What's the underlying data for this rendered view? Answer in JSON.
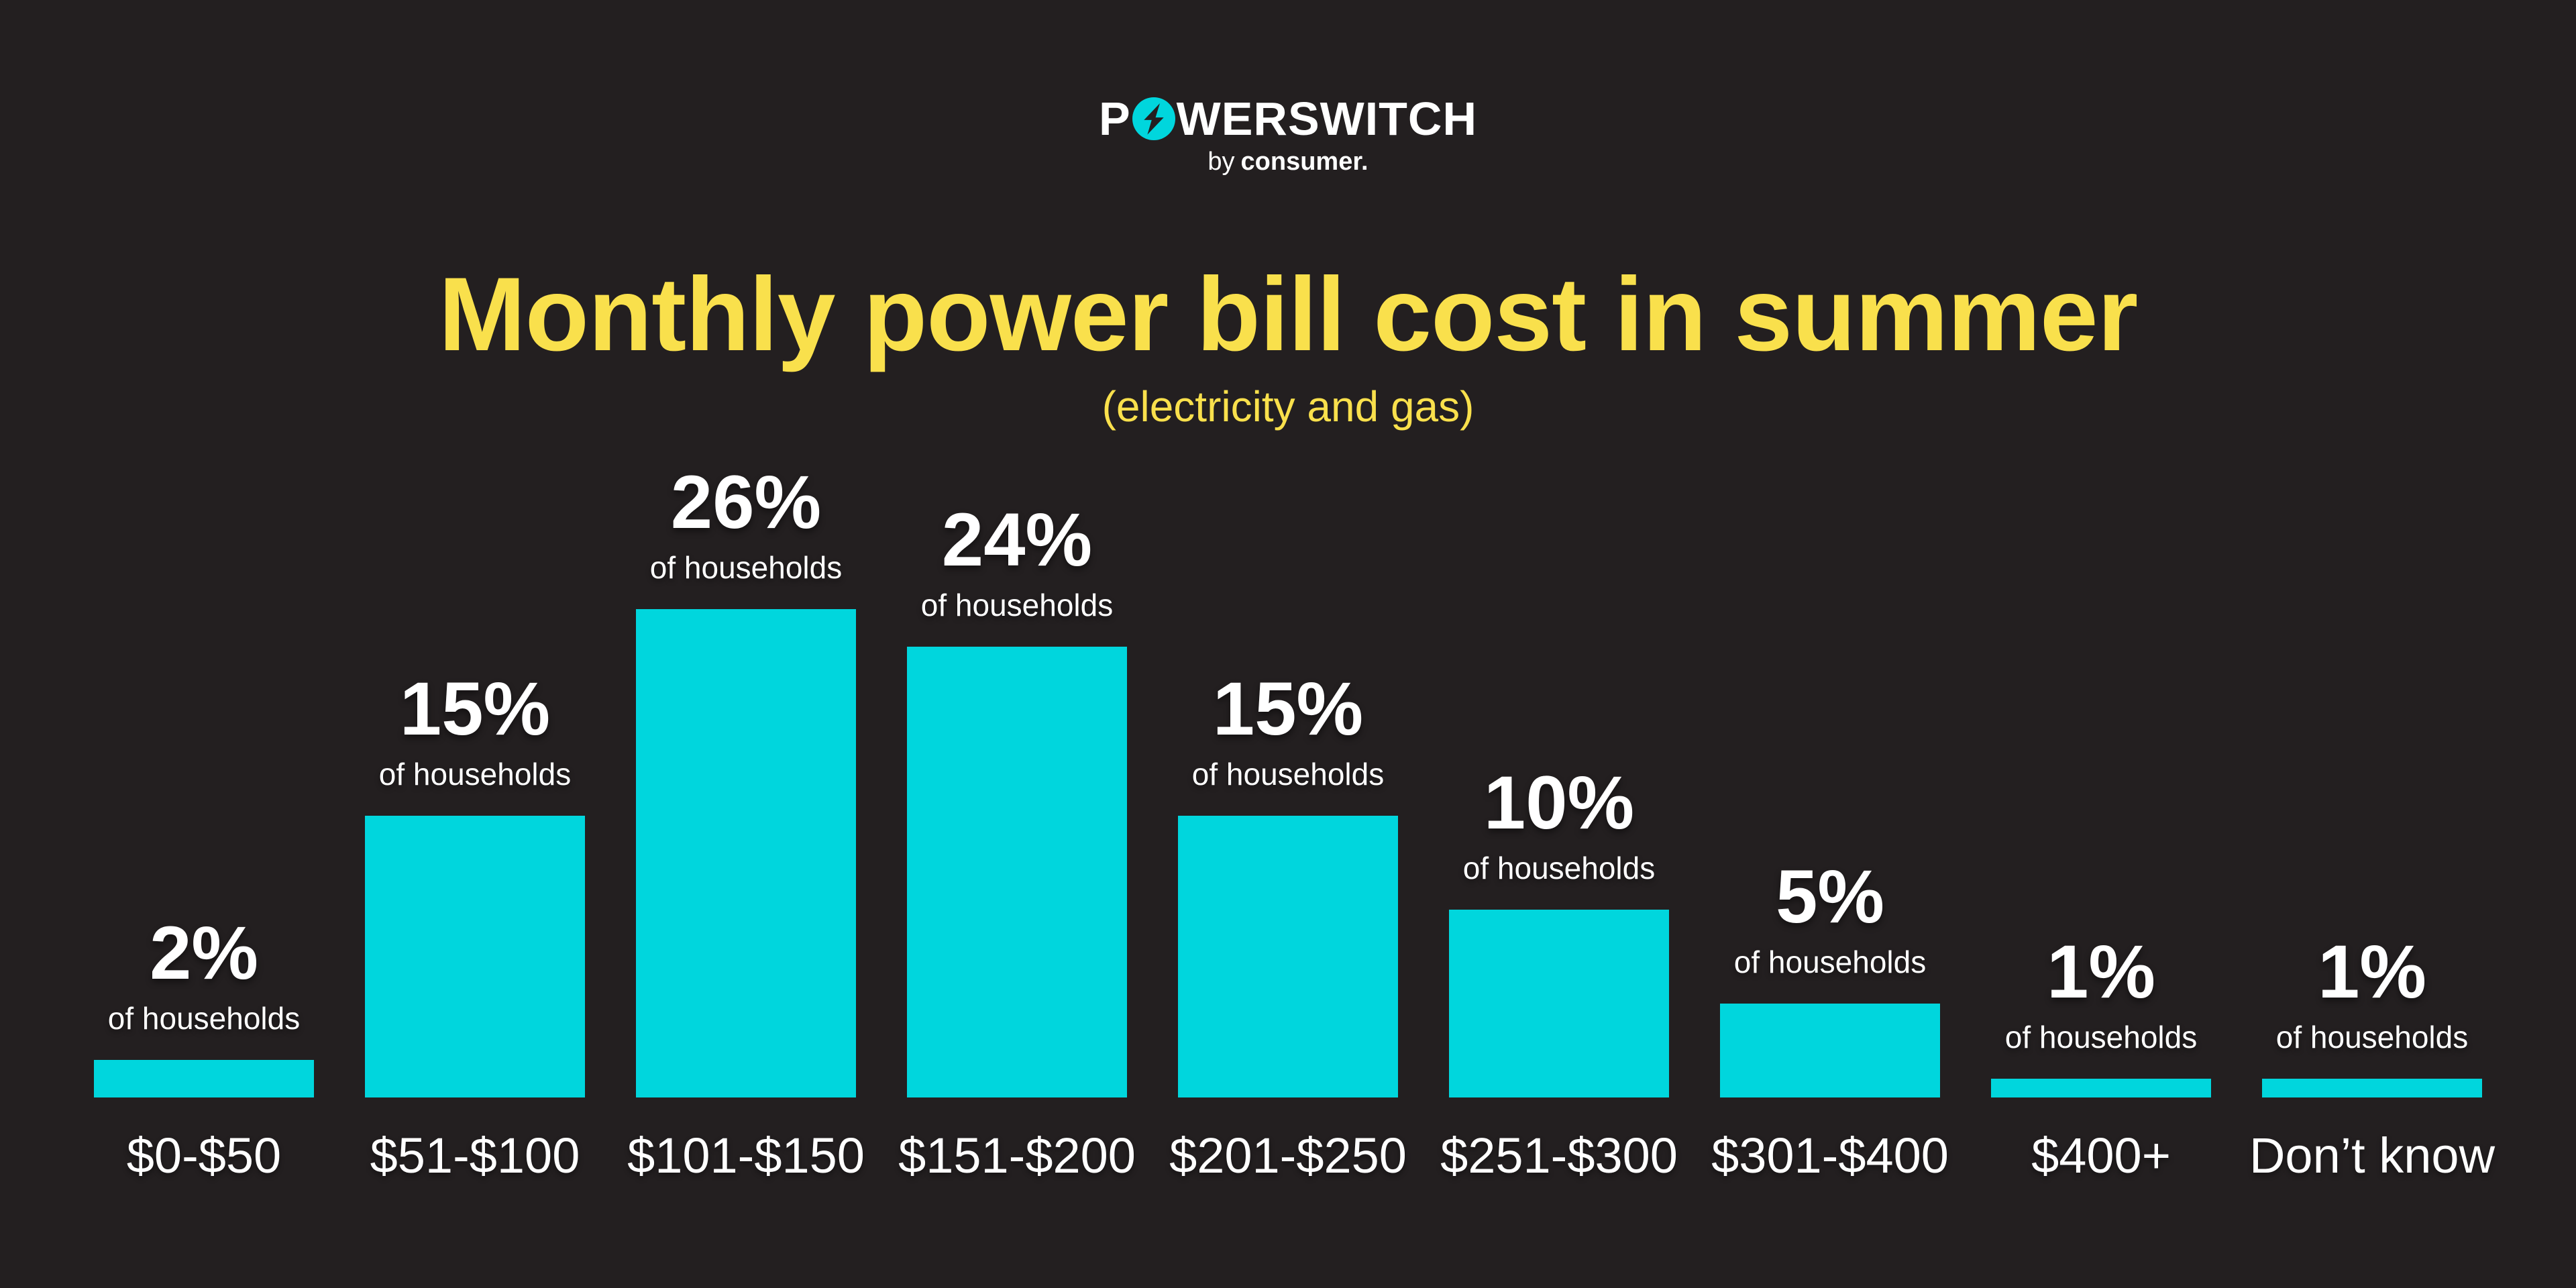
{
  "logo": {
    "brand": "POWERSWITCH",
    "prefix": "P",
    "suffix": "WERSWITCH",
    "byline_by": "by",
    "byline_brand": "consumer."
  },
  "title": "Monthly power bill cost in summer",
  "subtitle": "(electricity and gas)",
  "colors": {
    "background": "#231F20",
    "bar": "#00D6DD",
    "accent_yellow": "#F9E04C",
    "text_white": "#FFFFFF",
    "logo_icon_cyan": "#00D6DD"
  },
  "chart_data": {
    "type": "bar",
    "title": "Monthly power bill cost in summer",
    "subtitle": "(electricity and gas)",
    "categories": [
      "$0-$50",
      "$51-$100",
      "$101-$150",
      "$151-$200",
      "$201-$250",
      "$251-$300",
      "$301-$400",
      "$400+",
      "Don’t know"
    ],
    "values": [
      2,
      15,
      26,
      24,
      15,
      10,
      5,
      1,
      1
    ],
    "value_labels": [
      "2%",
      "15%",
      "26%",
      "24%",
      "15%",
      "10%",
      "5%",
      "1%",
      "1%"
    ],
    "value_sublabel": "of households",
    "unit": "% of households",
    "bar_color": "#00D6DD",
    "xlabel": "",
    "ylabel": "",
    "ylim": [
      0,
      30
    ],
    "grid": false,
    "legend": false,
    "bar_value_labels_position": "above",
    "category_labels_position": "below"
  }
}
